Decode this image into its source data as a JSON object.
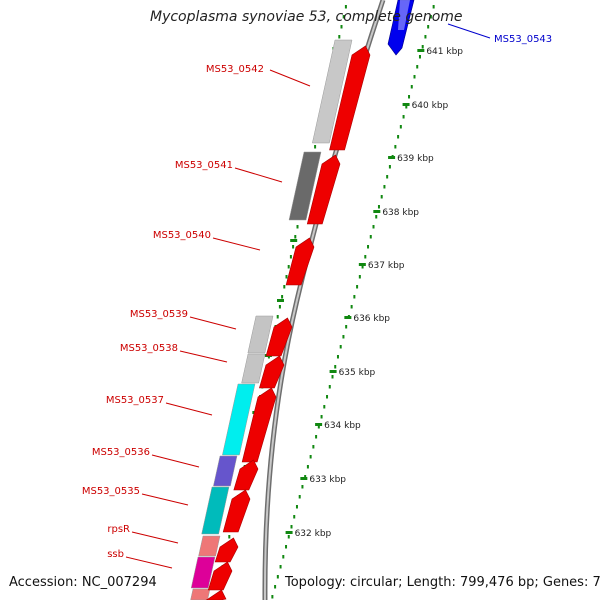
{
  "map": {
    "title": "Mycoplasma synoviae 53, complete genome",
    "accession": "Accession: NC_007294",
    "topology": "Topology: circular; Length: 799,476 bp; Genes: 700"
  },
  "colors": {
    "forward_gene": "#ee0000",
    "reverse_gene": "#0000ee",
    "backbone": "#888888",
    "tick": "#118811",
    "tick_label": "#222222",
    "gene_label": "#cc0000"
  },
  "genes": [
    {
      "name": "MS53_0543",
      "strand": "reverse"
    },
    {
      "name": "MS53_0542",
      "strand": "forward"
    },
    {
      "name": "MS53_0541",
      "strand": "forward"
    },
    {
      "name": "MS53_0540",
      "strand": "forward"
    },
    {
      "name": "MS53_0539",
      "strand": "forward"
    },
    {
      "name": "MS53_0538",
      "strand": "forward"
    },
    {
      "name": "MS53_0537",
      "strand": "forward"
    },
    {
      "name": "MS53_0536",
      "strand": "forward"
    },
    {
      "name": "MS53_0535",
      "strand": "forward"
    },
    {
      "name": "rpsR",
      "strand": "forward"
    },
    {
      "name": "ssb",
      "strand": "forward"
    }
  ],
  "scale_ticks": [
    "641 kbp",
    "640 kbp",
    "639 kbp",
    "638 kbp",
    "637 kbp",
    "636 kbp",
    "635 kbp",
    "634 kbp",
    "633 kbp",
    "632 kbp"
  ]
}
